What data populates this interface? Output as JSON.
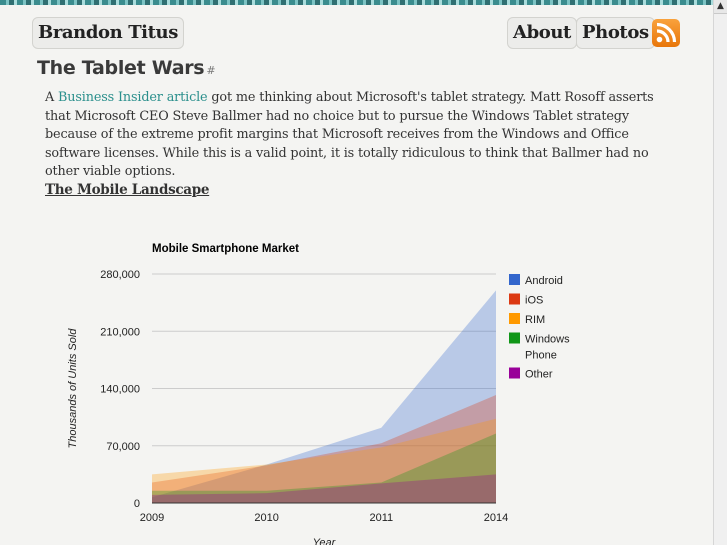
{
  "site": {
    "name": "Brandon Titus"
  },
  "nav": {
    "about": "About",
    "photos": "Photos",
    "rss_icon": "rss-feed-icon"
  },
  "post": {
    "title": "The Tablet Wars",
    "permalink": "#",
    "para_intro": "A ",
    "link_text": "Business Insider article",
    "para_rest": " got me thinking about Microsoft's tablet strategy. Matt Rosoff asserts that Microsoft CEO Steve Ballmer had no choice but to pursue the Windows Tablet strategy because of the extreme profit margins that Microsoft receives from the Windows and Office software licenses. While this is a valid point, it is totally ridiculous to think that Ballmer had no other viable options.",
    "subheading": "The Mobile Landscape"
  },
  "chart_data": {
    "type": "area",
    "title": "Mobile Smartphone Market",
    "ylabel": "Thousands of Units Sold",
    "xlabel": "Year",
    "categories": [
      "2009",
      "2010",
      "2011",
      "2014"
    ],
    "ylim": [
      0,
      280000
    ],
    "yticks": [
      0,
      70000,
      140000,
      210000,
      280000
    ],
    "ytick_labels": [
      "0",
      "70,000",
      "140,000",
      "210,000",
      "280,000"
    ],
    "legend_position": "right",
    "series": [
      {
        "name": "Android",
        "color": "#3366cc",
        "values": [
          7000,
          47000,
          92000,
          260000
        ]
      },
      {
        "name": "iOS",
        "color": "#dc3912",
        "values": [
          25000,
          46000,
          73000,
          132000
        ]
      },
      {
        "name": "RIM",
        "color": "#ff9900",
        "values": [
          35000,
          47000,
          68000,
          103000
        ]
      },
      {
        "name": "Windows Phone",
        "color": "#109618",
        "values": [
          15000,
          15000,
          25000,
          85000
        ]
      },
      {
        "name": "Other",
        "color": "#990099",
        "values": [
          10000,
          12000,
          24000,
          35000
        ]
      }
    ]
  }
}
